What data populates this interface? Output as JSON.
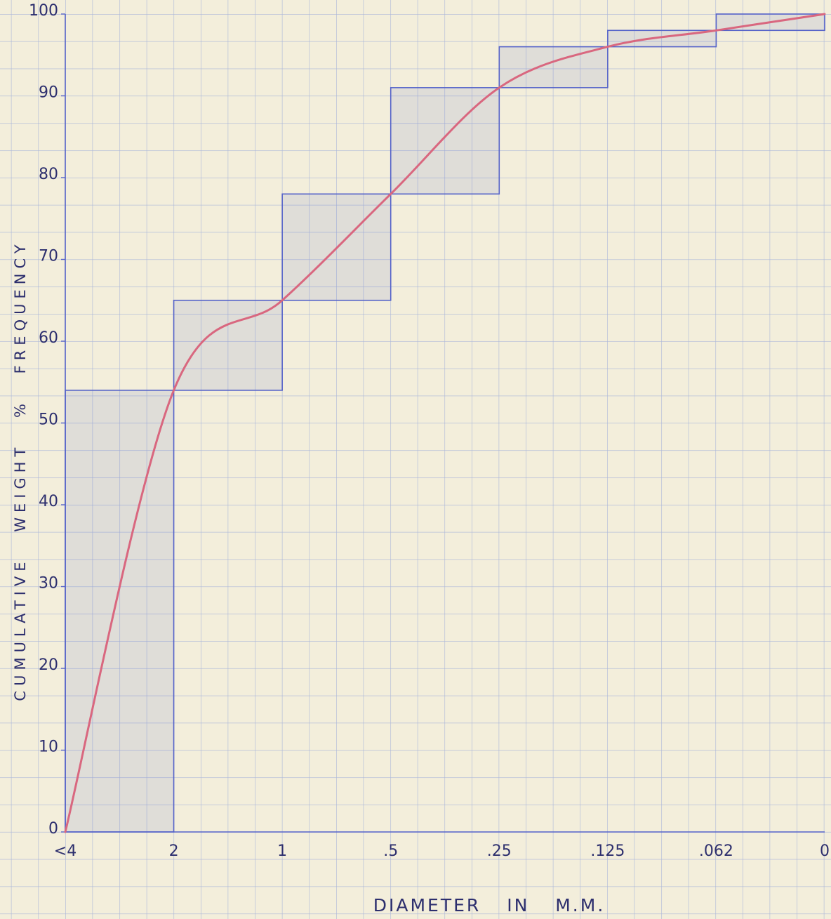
{
  "chart_data": {
    "type": "line",
    "x_label": "DIAMETER IN M.M.",
    "y_label": "CUMULATIVE WEIGHT % FREQUENCY",
    "categories": [
      "<4",
      "2",
      "1",
      ".5",
      ".25",
      ".125",
      ".062",
      "0"
    ],
    "series": [
      {
        "color": "#d9677f",
        "values": [
          0,
          54,
          65,
          78,
          91,
          96,
          98,
          100
        ]
      }
    ],
    "boxes": true,
    "box_color": "#5563c9",
    "ylim": [
      0,
      100
    ],
    "yticks": [
      0,
      10,
      20,
      30,
      40,
      50,
      60,
      70,
      80,
      90,
      100
    ]
  }
}
